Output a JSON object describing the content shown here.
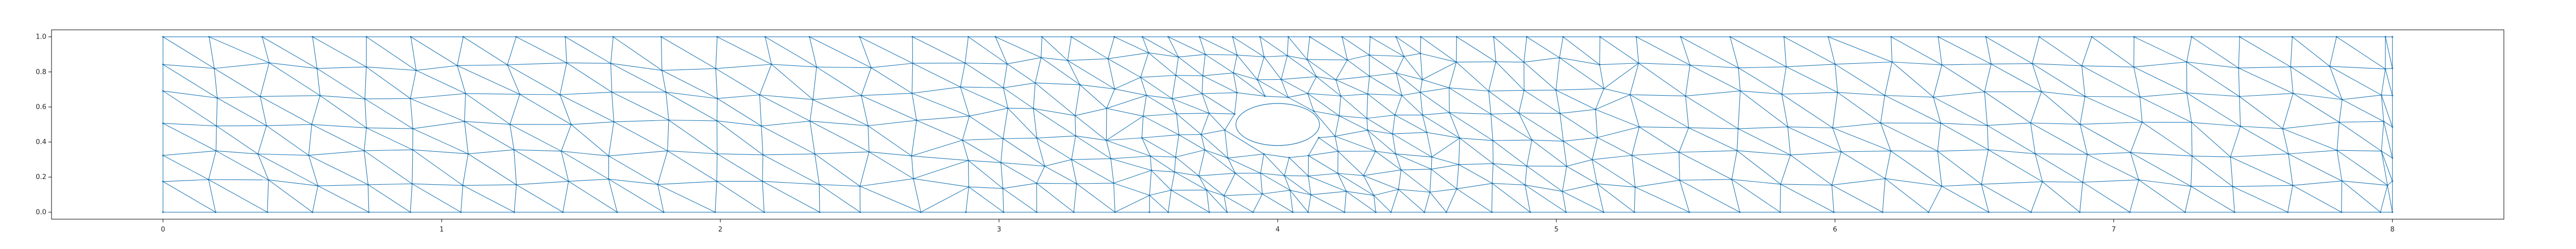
{
  "chart_data": {
    "type": "mesh",
    "title": "",
    "xlabel": "",
    "ylabel": "",
    "xlim": [
      -0.4,
      8.4
    ],
    "ylim": [
      -0.04,
      1.04
    ],
    "x_ticks": [
      {
        "value": 0,
        "label": "0"
      },
      {
        "value": 1,
        "label": "1"
      },
      {
        "value": 2,
        "label": "2"
      },
      {
        "value": 3,
        "label": "3"
      },
      {
        "value": 4,
        "label": "4"
      },
      {
        "value": 5,
        "label": "5"
      },
      {
        "value": 6,
        "label": "6"
      },
      {
        "value": 7,
        "label": "7"
      },
      {
        "value": 8,
        "label": "8"
      }
    ],
    "y_ticks": [
      {
        "value": 0.0,
        "label": "0.0"
      },
      {
        "value": 0.2,
        "label": "0.2"
      },
      {
        "value": 0.4,
        "label": "0.4"
      },
      {
        "value": 0.6,
        "label": "0.6"
      },
      {
        "value": 0.8,
        "label": "0.8"
      },
      {
        "value": 1.0,
        "label": "1.0"
      }
    ],
    "domain": {
      "x": [
        0,
        8
      ],
      "y": [
        0,
        1
      ]
    },
    "hole": {
      "shape": "ellipse",
      "center": [
        4.0,
        0.5
      ],
      "radii": [
        0.15,
        0.12
      ]
    },
    "mesh_style": {
      "line_color": "#1f77b4",
      "marker": "point"
    },
    "grid": false,
    "legend": "none"
  }
}
